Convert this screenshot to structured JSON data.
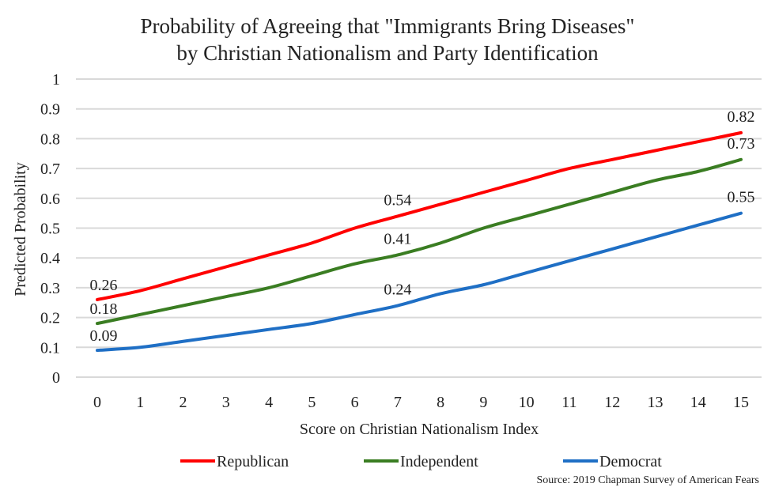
{
  "chart_data": {
    "type": "line",
    "title": [
      "Probability of Agreeing that \"Immigrants Bring Diseases\"",
      "by Christian Nationalism and Party Identification"
    ],
    "xlabel": "Score on Christian Nationalism Index",
    "ylabel": "Predicted Probability",
    "x": [
      0,
      1,
      2,
      3,
      4,
      5,
      6,
      7,
      8,
      9,
      10,
      11,
      12,
      13,
      14,
      15
    ],
    "xlim": [
      0,
      15
    ],
    "ylim": [
      0,
      1
    ],
    "yticks": [
      "0",
      "0.1",
      "0.2",
      "0.3",
      "0.4",
      "0.5",
      "0.6",
      "0.7",
      "0.8",
      "0.9",
      "1"
    ],
    "xticks": [
      "0",
      "1",
      "2",
      "3",
      "4",
      "5",
      "6",
      "7",
      "8",
      "9",
      "10",
      "11",
      "12",
      "13",
      "14",
      "15"
    ],
    "grid": true,
    "legend_position": "bottom",
    "series": [
      {
        "name": "Republican",
        "color": "#ff0000",
        "values": [
          0.26,
          0.29,
          0.33,
          0.37,
          0.41,
          0.45,
          0.5,
          0.54,
          0.58,
          0.62,
          0.66,
          0.7,
          0.73,
          0.76,
          0.79,
          0.82
        ],
        "data_labels": [
          {
            "x": 0,
            "label": "0.26"
          },
          {
            "x": 7,
            "label": "0.54"
          },
          {
            "x": 15,
            "label": "0.82"
          }
        ]
      },
      {
        "name": "Independent",
        "color": "#3a7d22",
        "values": [
          0.18,
          0.21,
          0.24,
          0.27,
          0.3,
          0.34,
          0.38,
          0.41,
          0.45,
          0.5,
          0.54,
          0.58,
          0.62,
          0.66,
          0.69,
          0.73
        ],
        "data_labels": [
          {
            "x": 0,
            "label": "0.18"
          },
          {
            "x": 7,
            "label": "0.41"
          },
          {
            "x": 15,
            "label": "0.73"
          }
        ]
      },
      {
        "name": "Democrat",
        "color": "#1f6fc5",
        "values": [
          0.09,
          0.1,
          0.12,
          0.14,
          0.16,
          0.18,
          0.21,
          0.24,
          0.28,
          0.31,
          0.35,
          0.39,
          0.43,
          0.47,
          0.51,
          0.55
        ],
        "data_labels": [
          {
            "x": 0,
            "label": "0.09"
          },
          {
            "x": 7,
            "label": "0.24"
          },
          {
            "x": 15,
            "label": "0.55"
          }
        ]
      }
    ],
    "source": "Source: 2019 Chapman Survey of American Fears"
  }
}
